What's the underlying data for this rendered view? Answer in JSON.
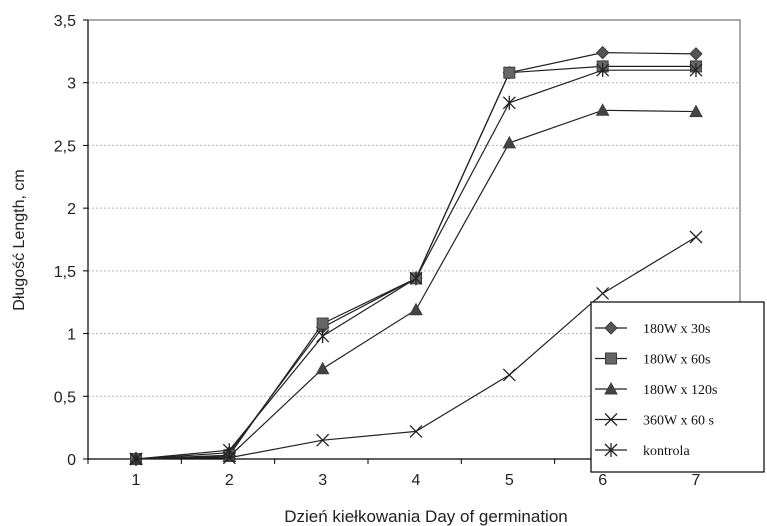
{
  "chart_data": {
    "type": "line",
    "title": "",
    "xlabel": "Dzień kiełkowania Day of germination",
    "ylabel": "Długość Length, cm",
    "categories": [
      "1",
      "2",
      "3",
      "4",
      "5",
      "6",
      "7"
    ],
    "x": [
      1,
      2,
      3,
      4,
      5,
      6,
      7
    ],
    "yticks": [
      "0",
      "0,5",
      "1",
      "1,5",
      "2",
      "2,5",
      "3",
      "3,5"
    ],
    "ylim": [
      0,
      3.5
    ],
    "grid": true,
    "legend_position": "right",
    "series": [
      {
        "name": "180W x 30s",
        "marker": "diamond",
        "values": [
          0,
          0.05,
          1.05,
          1.44,
          3.08,
          3.24,
          3.23
        ]
      },
      {
        "name": "180W x 60s",
        "marker": "square",
        "values": [
          0,
          0.03,
          1.08,
          1.44,
          3.08,
          3.13,
          3.13
        ]
      },
      {
        "name": "180W x 120s",
        "marker": "triangle",
        "values": [
          0,
          0.02,
          0.72,
          1.19,
          2.52,
          2.78,
          2.77
        ]
      },
      {
        "name": "360W x 60 s",
        "marker": "x",
        "values": [
          0,
          0.01,
          0.15,
          0.22,
          0.67,
          1.32,
          1.77
        ]
      },
      {
        "name": "kontrola",
        "marker": "star",
        "values": [
          0,
          0.07,
          0.98,
          1.44,
          2.84,
          3.1,
          3.1
        ]
      }
    ]
  }
}
